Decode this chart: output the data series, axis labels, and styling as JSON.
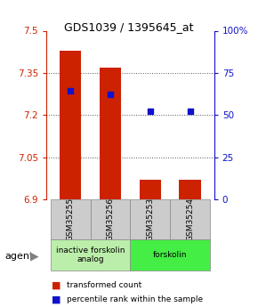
{
  "title": "GDS1039 / 1395645_at",
  "samples": [
    "GSM35255",
    "GSM35256",
    "GSM35253",
    "GSM35254"
  ],
  "bar_values": [
    7.43,
    7.37,
    6.97,
    6.97
  ],
  "bar_bottom": 6.9,
  "percentile_values": [
    7.285,
    7.275,
    7.215,
    7.215
  ],
  "ylim": [
    6.9,
    7.5
  ],
  "yticks": [
    6.9,
    7.05,
    7.2,
    7.35,
    7.5
  ],
  "ytick_labels": [
    "6.9",
    "7.05",
    "7.2",
    "7.35",
    "7.5"
  ],
  "y2ticks": [
    0,
    25,
    50,
    75,
    100
  ],
  "y2tick_labels": [
    "0",
    "25",
    "50",
    "75",
    "100%"
  ],
  "bar_color": "#cc2200",
  "dot_color": "#1111cc",
  "grid_color": "#555555",
  "agent_groups": [
    {
      "label": "inactive forskolin\nanalog",
      "color": "#bbeeaa",
      "samples": [
        0,
        1
      ]
    },
    {
      "label": "forskolin",
      "color": "#44ee44",
      "samples": [
        2,
        3
      ]
    }
  ],
  "agent_label": "agent",
  "legend_items": [
    {
      "color": "#cc2200",
      "label": "transformed count"
    },
    {
      "color": "#1111cc",
      "label": "percentile rank within the sample"
    }
  ],
  "bar_width": 0.55,
  "sample_box_color": "#cccccc",
  "sample_box_edge": "#888888"
}
